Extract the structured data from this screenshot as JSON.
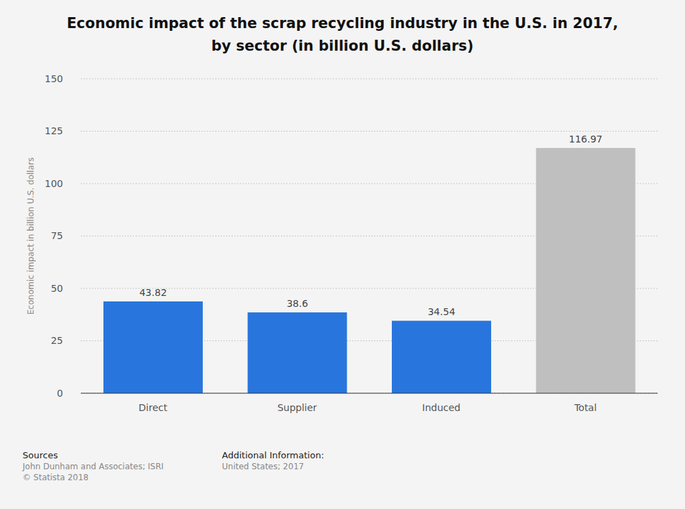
{
  "chart_data": {
    "type": "bar",
    "title": "Economic impact of the scrap recycling industry in the U.S. in 2017,\nby sector (in billion U.S. dollars)",
    "ylabel": "Economic impact in billion U.S. dollars",
    "categories": [
      "Direct",
      "Supplier",
      "Induced",
      "Total"
    ],
    "values": [
      43.82,
      38.6,
      34.54,
      116.97
    ],
    "colors": [
      "#2876dd",
      "#2876dd",
      "#2876dd",
      "#bfbfbf"
    ],
    "ylim": [
      0,
      150
    ],
    "yticks": [
      0,
      25,
      50,
      75,
      100,
      125,
      150
    ],
    "grid": true,
    "data_labels": true,
    "sources_label": "Sources",
    "sources": [
      "John Dunham and Associates; ISRI",
      "© Statista 2018"
    ],
    "additional_info_label": "Additional Information:",
    "additional_info": "United States; 2017"
  }
}
